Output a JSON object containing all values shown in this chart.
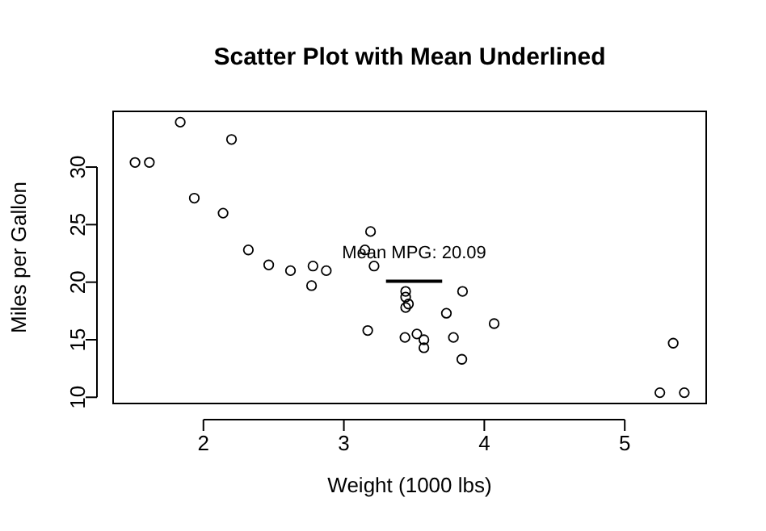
{
  "chart_data": {
    "type": "scatter",
    "title": "Scatter Plot with Mean Underlined",
    "xlabel": "Weight (1000 lbs)",
    "ylabel": "Miles per Gallon",
    "xlim": [
      1.357,
      5.58
    ],
    "ylim": [
      9.46,
      34.84
    ],
    "xticks": [
      2,
      3,
      4,
      5
    ],
    "yticks": [
      10,
      15,
      20,
      25,
      30
    ],
    "marker": "circle",
    "grid": false,
    "series": [
      {
        "color": "#000000",
        "x": [
          2.62,
          2.875,
          2.32,
          3.215,
          3.44,
          3.46,
          3.57,
          3.19,
          3.15,
          3.44,
          3.44,
          4.07,
          3.73,
          3.78,
          5.25,
          5.424,
          5.345,
          2.2,
          1.615,
          1.835,
          2.465,
          3.52,
          3.435,
          3.84,
          3.845,
          1.935,
          2.14,
          1.513,
          3.17,
          2.77,
          3.57,
          2.78
        ],
        "values": [
          21.0,
          21.0,
          22.8,
          21.4,
          18.7,
          18.1,
          14.3,
          24.4,
          22.8,
          19.2,
          17.8,
          16.4,
          17.3,
          15.2,
          10.4,
          10.4,
          14.7,
          32.4,
          30.4,
          33.9,
          21.5,
          15.5,
          15.2,
          13.3,
          19.2,
          27.3,
          26.0,
          30.4,
          15.8,
          19.7,
          15.0,
          21.4
        ]
      },
      {
        "type": "line",
        "marker": "none",
        "color": "#000000",
        "x": [
          3.3,
          3.7
        ],
        "values": [
          20.09,
          20.09
        ]
      }
    ],
    "annotations": [
      "Mean MPG: 20.09"
    ]
  }
}
